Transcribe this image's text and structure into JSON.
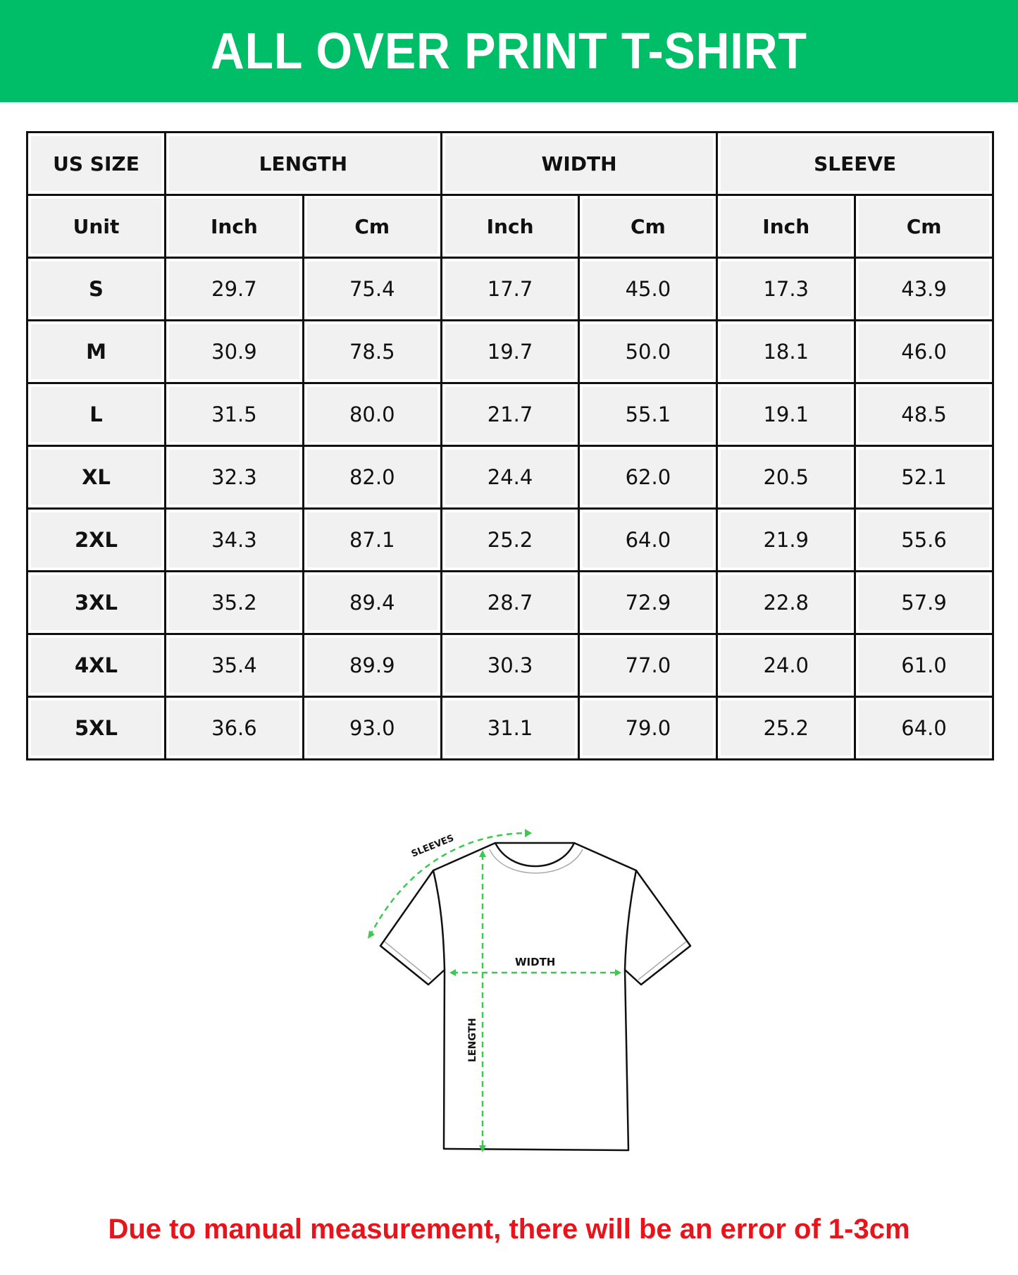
{
  "title": "ALL OVER PRINT T-SHIRT",
  "colors": {
    "banner": "#00bd68",
    "note": "#e8141c",
    "arrows": "#3cc94f"
  },
  "table": {
    "group_headers": [
      "US SIZE",
      "LENGTH",
      "WIDTH",
      "SLEEVE"
    ],
    "unit_row": [
      "Unit",
      "Inch",
      "Cm",
      "Inch",
      "Cm",
      "Inch",
      "Cm"
    ],
    "rows": [
      [
        "S",
        "29.7",
        "75.4",
        "17.7",
        "45.0",
        "17.3",
        "43.9"
      ],
      [
        "M",
        "30.9",
        "78.5",
        "19.7",
        "50.0",
        "18.1",
        "46.0"
      ],
      [
        "L",
        "31.5",
        "80.0",
        "21.7",
        "55.1",
        "19.1",
        "48.5"
      ],
      [
        "XL",
        "32.3",
        "82.0",
        "24.4",
        "62.0",
        "20.5",
        "52.1"
      ],
      [
        "2XL",
        "34.3",
        "87.1",
        "25.2",
        "64.0",
        "21.9",
        "55.6"
      ],
      [
        "3XL",
        "35.2",
        "89.4",
        "28.7",
        "72.9",
        "22.8",
        "57.9"
      ],
      [
        "4XL",
        "35.4",
        "89.9",
        "30.3",
        "77.0",
        "24.0",
        "61.0"
      ],
      [
        "5XL",
        "36.6",
        "93.0",
        "31.1",
        "79.0",
        "25.2",
        "64.0"
      ]
    ]
  },
  "diagram": {
    "sleeves_label": "SLEEVES",
    "width_label": "WIDTH",
    "length_label": "LENGTH"
  },
  "note": "Due to manual measurement, there will be an error of 1-3cm"
}
